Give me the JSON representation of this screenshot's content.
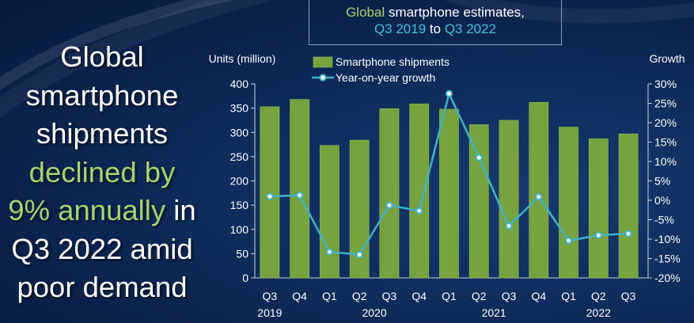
{
  "headline": {
    "line1": "Global",
    "line2": "smartphone",
    "line3": "shipments",
    "line4": "declined by",
    "line5_highlight": "9% annually",
    "line5_rest": " in",
    "line6": "Q3 2022 amid",
    "line7": "poor demand"
  },
  "title_box": {
    "word1": "Global",
    "word2": " smartphone estimates,",
    "word3": "Q3 2019",
    "word4": " to ",
    "word5": "Q3 2022"
  },
  "colors": {
    "bar": "#76a23f",
    "line": "#3fb3c6",
    "highlight": "#a7d46f",
    "accent_blue": "#41c2d6"
  },
  "chart_data": {
    "type": "bar",
    "title": "Global smartphone estimates, Q3 2019 to Q3 2022",
    "ylabel": "Units (million)",
    "y2label": "Growth",
    "ylim": [
      0,
      400
    ],
    "y_ticks": [
      "0",
      "50",
      "100",
      "150",
      "200",
      "250",
      "300",
      "350",
      "400"
    ],
    "y2lim": [
      -20,
      30
    ],
    "y2_ticks": [
      "-20%",
      "-15%",
      "-10%",
      "-5%",
      "0%",
      "5%",
      "10%",
      "15%",
      "20%",
      "25%",
      "30%"
    ],
    "categories": [
      "Q3",
      "Q4",
      "Q1",
      "Q2",
      "Q3",
      "Q4",
      "Q1",
      "Q2",
      "Q3",
      "Q4",
      "Q1",
      "Q2",
      "Q3"
    ],
    "year_labels": [
      {
        "label": "2019",
        "under": 0
      },
      {
        "label": "2020",
        "under": 3.5
      },
      {
        "label": "2021",
        "under": 7.5
      },
      {
        "label": "2022",
        "under": 11
      }
    ],
    "series": [
      {
        "name": "Smartphone shipments",
        "type": "bar",
        "axis": "left",
        "values": [
          353,
          368,
          273,
          284,
          349,
          359,
          348,
          316,
          325,
          362,
          311,
          287,
          297
        ]
      },
      {
        "name": "Year-on-year growth",
        "type": "line",
        "axis": "right",
        "values": [
          1,
          1.3,
          -13.3,
          -14,
          -1.3,
          -2.7,
          27.5,
          11,
          -6.6,
          0.9,
          -10.4,
          -9,
          -8.6
        ]
      }
    ],
    "legend_position": "top-center"
  }
}
